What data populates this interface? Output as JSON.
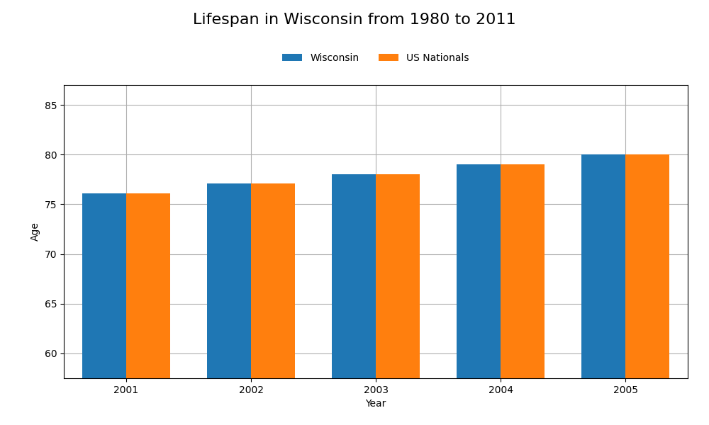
{
  "chart_data": {
    "type": "bar",
    "title": "Lifespan in Wisconsin from 1980 to 2011",
    "x_label": "Year",
    "y_label": "Age",
    "categories": [
      "2001",
      "2002",
      "2003",
      "2004",
      "2005"
    ],
    "series": [
      {
        "name": "Wisconsin",
        "values": [
          76.1,
          77.1,
          78.0,
          79.0,
          80.0
        ]
      },
      {
        "name": "US Nationals",
        "values": [
          76.1,
          77.1,
          78.0,
          79.0,
          80.0
        ]
      }
    ],
    "ylim": [
      57.5,
      87
    ],
    "yticks": [
      60,
      65,
      70,
      75,
      80,
      85
    ],
    "grid": true,
    "legend": "upper center"
  }
}
